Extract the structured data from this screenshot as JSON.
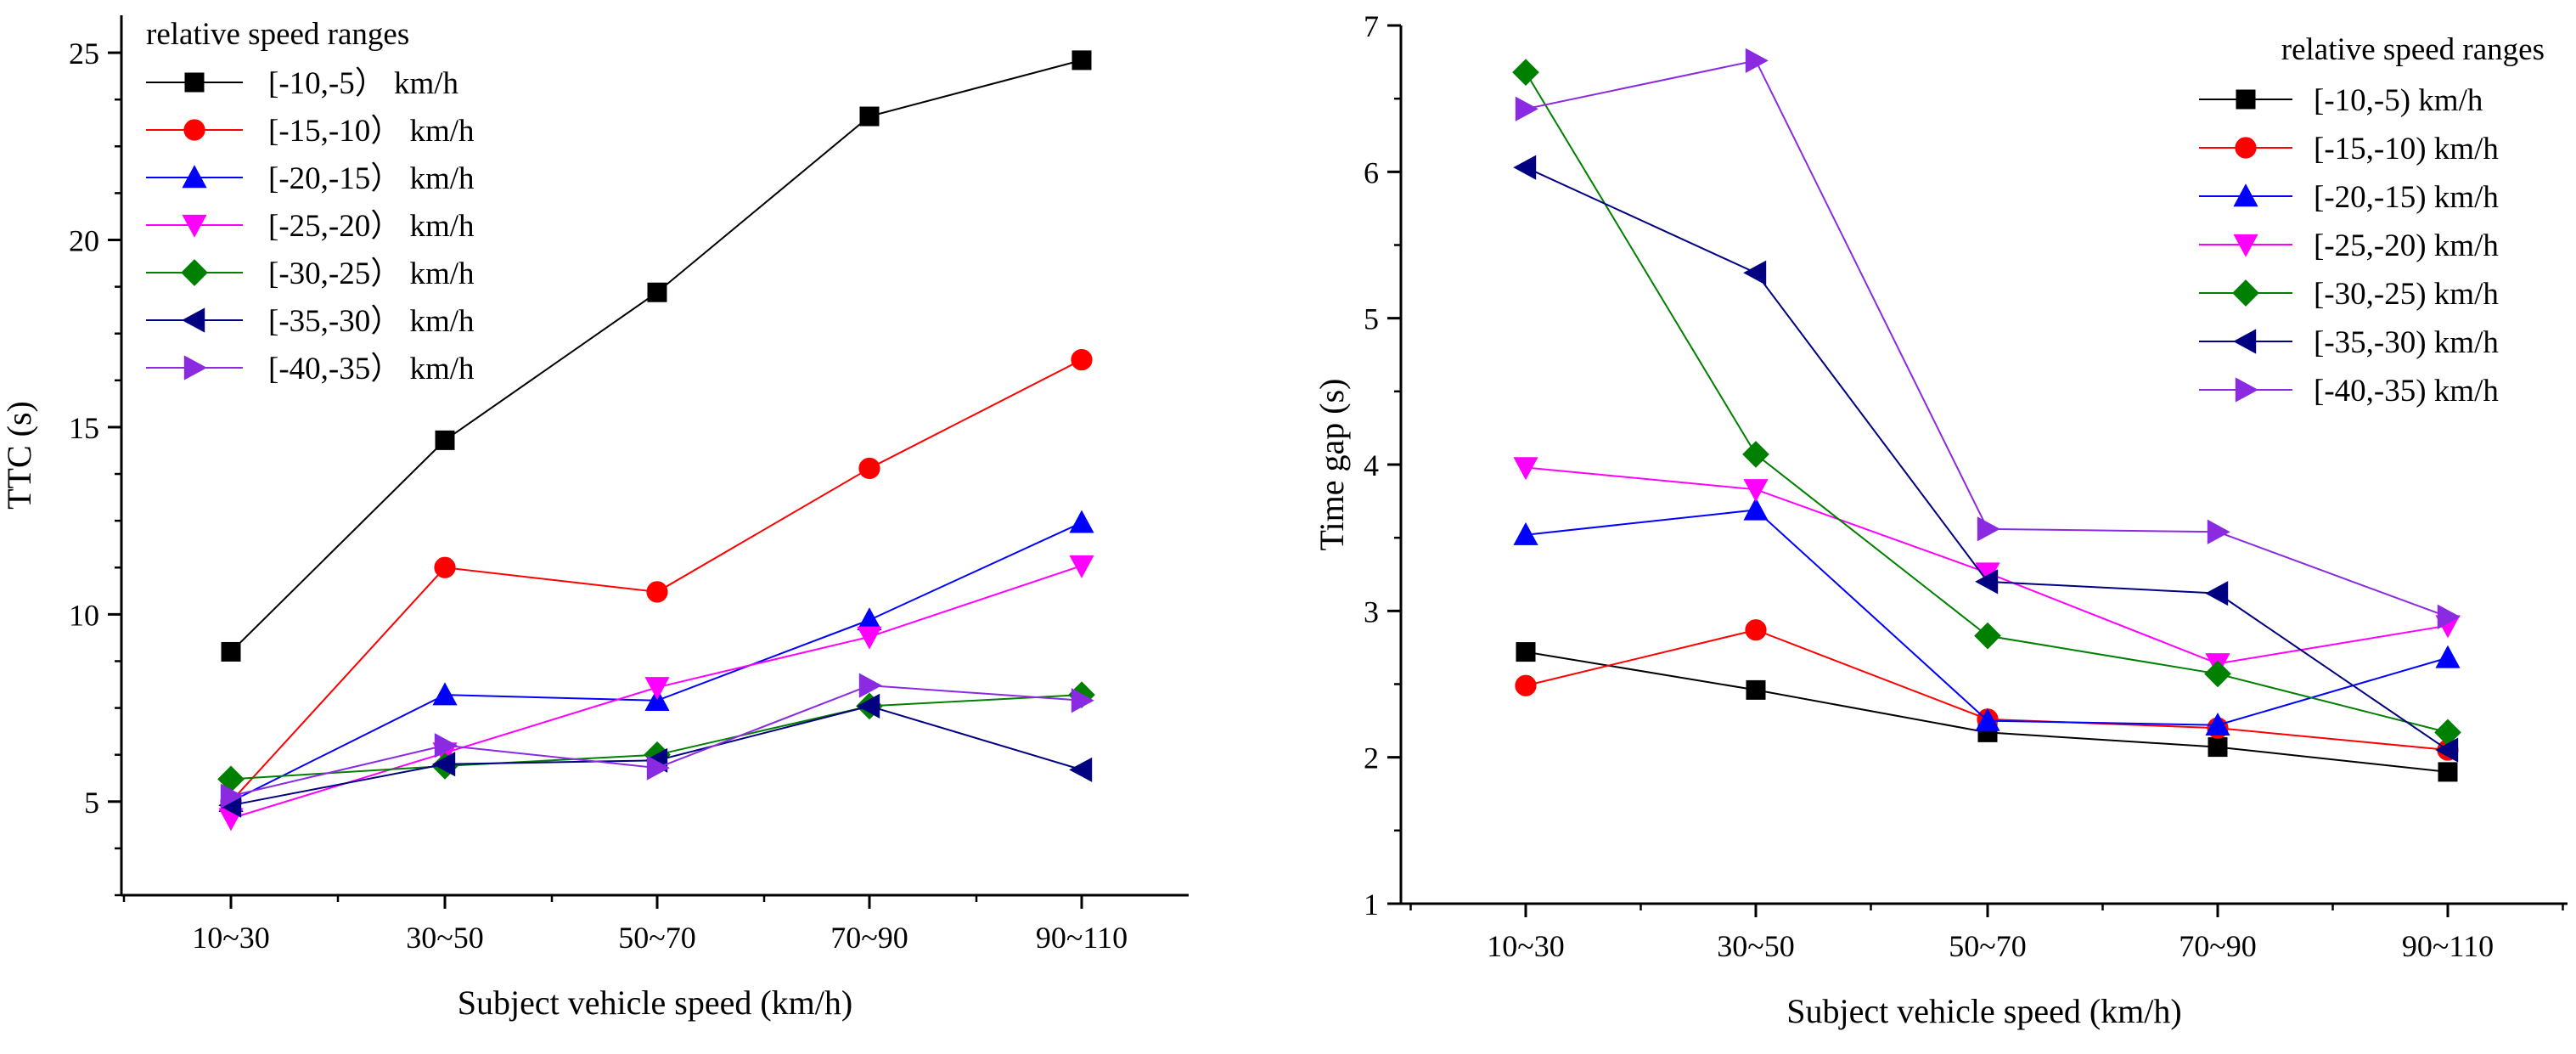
{
  "chart_data": [
    {
      "type": "line",
      "title": "",
      "xlabel": "Subject vehicle speed (km/h)",
      "ylabel": "TTC (s)",
      "categories": [
        "10~30",
        "30~50",
        "50~70",
        "70~90",
        "90~110"
      ],
      "ylim": [
        2.5,
        26
      ],
      "yticks": [
        "5",
        "10",
        "15",
        "20",
        "25"
      ],
      "legend_title": "relative speed ranges",
      "legend_position": "top-left",
      "series": [
        {
          "name": "[-10,-5） km/h",
          "color": "#000000",
          "marker": "square",
          "values": [
            9.0,
            14.65,
            18.6,
            23.3,
            24.8
          ]
        },
        {
          "name": "[-15,-10） km/h",
          "color": "#ff0000",
          "marker": "circle",
          "values": [
            5.0,
            11.25,
            10.6,
            13.9,
            16.8
          ]
        },
        {
          "name": "[-20,-15） km/h",
          "color": "#0000ff",
          "marker": "triangle-up",
          "values": [
            5.0,
            7.85,
            7.7,
            9.85,
            12.45
          ]
        },
        {
          "name": "[-25,-20） km/h",
          "color": "#ff00ff",
          "marker": "triangle-down",
          "values": [
            4.55,
            6.3,
            8.05,
            9.4,
            11.3
          ]
        },
        {
          "name": "[-30,-25） km/h",
          "color": "#008000",
          "marker": "diamond",
          "values": [
            5.6,
            5.95,
            6.25,
            7.55,
            7.85
          ]
        },
        {
          "name": "[-35,-30） km/h",
          "color": "#000080",
          "marker": "triangle-left",
          "values": [
            4.9,
            6.0,
            6.1,
            7.55,
            5.85
          ]
        },
        {
          "name": "[-40,-35） km/h",
          "color": "#8a2be2",
          "marker": "triangle-right",
          "values": [
            5.15,
            6.5,
            5.9,
            8.1,
            7.7
          ]
        }
      ]
    },
    {
      "type": "line",
      "title": "",
      "xlabel": "Subject vehicle speed (km/h)",
      "ylabel": "Time gap (s)",
      "categories": [
        "10~30",
        "30~50",
        "50~70",
        "70~90",
        "90~110"
      ],
      "ylim": [
        1,
        7
      ],
      "yticks": [
        "1",
        "2",
        "3",
        "4",
        "5",
        "6",
        "7"
      ],
      "legend_title": "relative speed ranges",
      "legend_position": "top-right",
      "series": [
        {
          "name": "[-10,-5) km/h",
          "color": "#000000",
          "marker": "square",
          "values": [
            2.72,
            2.46,
            2.17,
            2.07,
            1.9
          ]
        },
        {
          "name": "[-15,-10) km/h",
          "color": "#ff0000",
          "marker": "circle",
          "values": [
            2.49,
            2.87,
            2.26,
            2.2,
            2.05
          ]
        },
        {
          "name": "[-20,-15) km/h",
          "color": "#0000ff",
          "marker": "triangle-up",
          "values": [
            3.52,
            3.69,
            2.25,
            2.22,
            2.68
          ]
        },
        {
          "name": "[-25,-20) km/h",
          "color": "#ff00ff",
          "marker": "triangle-down",
          "values": [
            3.98,
            3.83,
            3.26,
            2.64,
            2.9
          ]
        },
        {
          "name": "[-30,-25) km/h",
          "color": "#008000",
          "marker": "diamond",
          "values": [
            6.68,
            4.07,
            2.83,
            2.57,
            2.17
          ]
        },
        {
          "name": "[-35,-30) km/h",
          "color": "#000080",
          "marker": "triangle-left",
          "values": [
            6.03,
            5.31,
            3.2,
            3.12,
            2.05
          ]
        },
        {
          "name": "[-40,-35) km/h",
          "color": "#8a2be2",
          "marker": "triangle-right",
          "values": [
            6.43,
            6.76,
            3.56,
            3.54,
            2.96
          ]
        }
      ]
    }
  ]
}
